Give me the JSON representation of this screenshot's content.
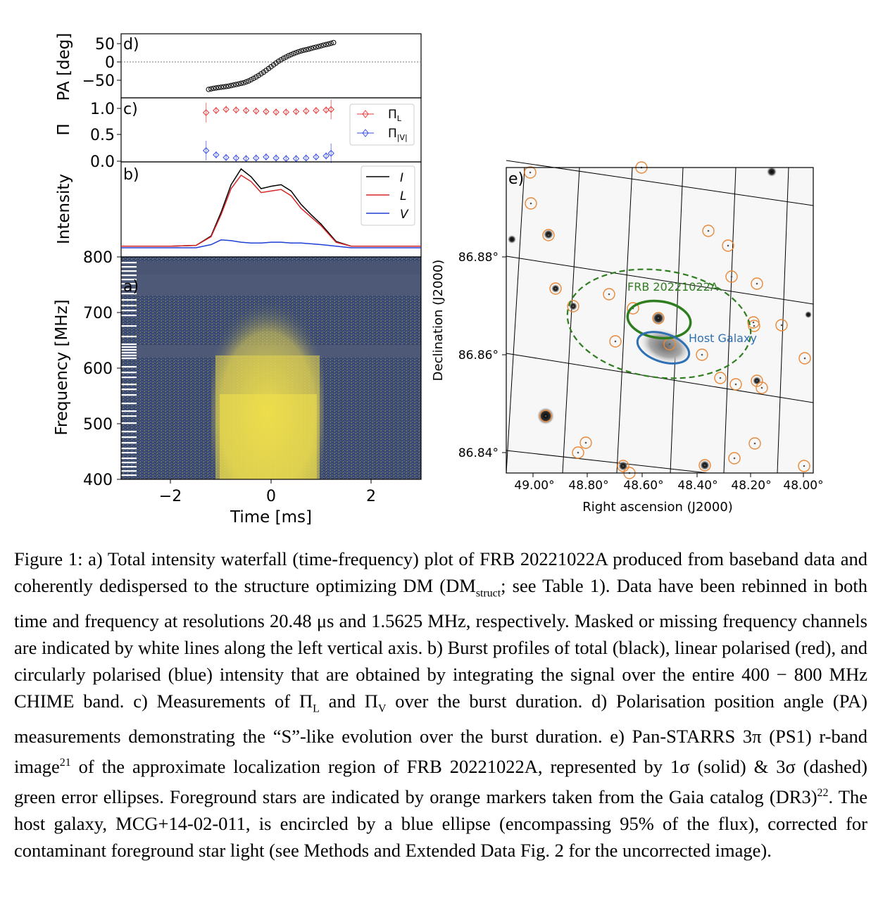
{
  "chart_data": [
    {
      "type": "scatter",
      "panel": "d)",
      "ylabel": "PA [deg]",
      "yticks": [
        "50",
        "0",
        "−50"
      ],
      "xlim": [
        -3.0,
        3.0
      ],
      "ylim": [
        -85,
        70
      ],
      "x": [
        -1.25,
        -1.15,
        -1.05,
        -0.95,
        -0.85,
        -0.75,
        -0.65,
        -0.55,
        -0.45,
        -0.35,
        -0.25,
        -0.15,
        -0.05,
        0.05,
        0.15,
        0.25,
        0.35,
        0.45,
        0.55,
        0.65,
        0.75,
        0.85,
        0.95,
        1.05,
        1.15,
        1.25
      ],
      "y": [
        -75,
        -72,
        -70,
        -68,
        -66,
        -63,
        -60,
        -57,
        -52,
        -45,
        -37,
        -28,
        -18,
        -8,
        2,
        10,
        17,
        23,
        28,
        32,
        35,
        39,
        42,
        46,
        49,
        53
      ],
      "reference_line": 0
    },
    {
      "type": "scatter",
      "panel": "c)",
      "ylabel": "Π",
      "yticks": [
        "1.0",
        "0.5",
        "0.0"
      ],
      "ylim": [
        0.0,
        1.15
      ],
      "legend": [
        "ΠL",
        "Π|V|"
      ],
      "legend_position": "top-right",
      "x": [
        -1.3,
        -1.1,
        -0.9,
        -0.7,
        -0.5,
        -0.3,
        -0.1,
        0.1,
        0.3,
        0.5,
        0.7,
        0.9,
        1.1,
        1.2
      ],
      "series": [
        {
          "name": "ΠL",
          "color": "#e8393a",
          "values": [
            0.92,
            0.96,
            0.98,
            0.97,
            0.96,
            0.95,
            0.94,
            0.93,
            0.93,
            0.94,
            0.95,
            0.96,
            0.97,
            0.98
          ]
        },
        {
          "name": "Π|V|",
          "color": "#3a4ee8",
          "values": [
            0.2,
            0.12,
            0.07,
            0.06,
            0.05,
            0.06,
            0.08,
            0.06,
            0.05,
            0.05,
            0.06,
            0.08,
            0.1,
            0.15
          ]
        }
      ]
    },
    {
      "type": "line",
      "panel": "b)",
      "ylabel": "Intensity",
      "legend": [
        "I",
        "L",
        "V"
      ],
      "legend_position": "top-right",
      "x": [
        -3.0,
        -2.0,
        -1.5,
        -1.2,
        -1.0,
        -0.8,
        -0.6,
        -0.4,
        -0.2,
        0.0,
        0.2,
        0.4,
        0.6,
        0.8,
        1.0,
        1.3,
        1.6,
        2.0,
        3.0
      ],
      "series": [
        {
          "name": "I",
          "color": "#000000",
          "values": [
            0.02,
            0.02,
            0.03,
            0.15,
            0.45,
            0.8,
            1.0,
            0.9,
            0.75,
            0.78,
            0.8,
            0.72,
            0.55,
            0.42,
            0.3,
            0.08,
            0.02,
            0.02,
            0.02
          ]
        },
        {
          "name": "L",
          "color": "#d62728",
          "values": [
            0.02,
            0.02,
            0.03,
            0.14,
            0.42,
            0.75,
            0.92,
            0.84,
            0.7,
            0.72,
            0.74,
            0.66,
            0.5,
            0.39,
            0.28,
            0.07,
            0.02,
            0.02,
            0.02
          ]
        },
        {
          "name": "V",
          "color": "#1f3fd6",
          "values": [
            0.0,
            0.0,
            0.0,
            0.04,
            0.1,
            0.09,
            0.07,
            0.06,
            0.06,
            0.07,
            0.07,
            0.06,
            0.06,
            0.05,
            0.04,
            0.02,
            0.0,
            0.0,
            0.0
          ]
        }
      ]
    },
    {
      "type": "heatmap",
      "panel": "a)",
      "ylabel": "Frequency [MHz]",
      "xlabel": "Time [ms]",
      "yticks": [
        "800",
        "700",
        "600",
        "500",
        "400"
      ],
      "xticks": [
        "−2",
        "0",
        "2"
      ],
      "ylim": [
        400,
        800
      ],
      "xlim": [
        -3.0,
        3.0
      ],
      "burst_time_range_ms": [
        -1.0,
        1.0
      ],
      "colors": {
        "background": "#3b4a72",
        "signal": "#f2e24a"
      }
    },
    {
      "type": "scatter",
      "panel": "e)",
      "xlabel": "Right ascension (J2000)",
      "ylabel": "Declination (J2000)",
      "xticks": [
        "49.00°",
        "48.80°",
        "48.60°",
        "48.40°",
        "48.20°",
        "48.00°"
      ],
      "yticks": [
        "86.88°",
        "86.86°",
        "86.84°"
      ],
      "annotations": [
        "FRB 20221022A",
        "Host Galaxy"
      ],
      "colors": {
        "frb": "#2e7d1f",
        "host": "#2f6fb3",
        "stars": "#e8893a"
      }
    }
  ],
  "caption": {
    "fig_label": "Figure 1:",
    "text_1": " a) Total intensity waterfall (time-frequency) plot of FRB 20221022A produced from baseband data and coherently dedispersed to the structure optimizing DM (DM",
    "sub_struct": "struct",
    "text_2": "; see Table 1). Data have been rebinned in both time and frequency at resolutions 20.48 μs and 1.5625 MHz, respectively. Masked or missing frequency channels are indicated by white lines along the left vertical axis. b) Burst profiles of total (black), linear polarised (red), and circularly polarised (blue) intensity that are obtained by integrating the signal over the entire 400 − 800 MHz CHIME band. c) Measurements of Π",
    "sub_L": "L",
    "text_3": " and Π",
    "sub_V": "V",
    "text_4": " over the burst duration. d) Polarisation position angle (PA) measurements demonstrating the “S”-like evolution over the burst duration. e) Pan-STARRS 3π (PS1) r-band image",
    "sup_21": "21",
    "text_5": " of the approximate localization region of FRB 20221022A, represented by 1σ (solid) & 3σ (dashed) green error ellipses. Foreground stars are indicated by orange markers taken from the Gaia catalog (DR3)",
    "sup_22": "22",
    "text_6": ". The host galaxy, MCG+14-02-011, is encircled by a blue ellipse (encompassing 95% of the flux), corrected for contaminant foreground star light (see Methods and Extended Data Fig. 2 for the uncorrected image)."
  }
}
